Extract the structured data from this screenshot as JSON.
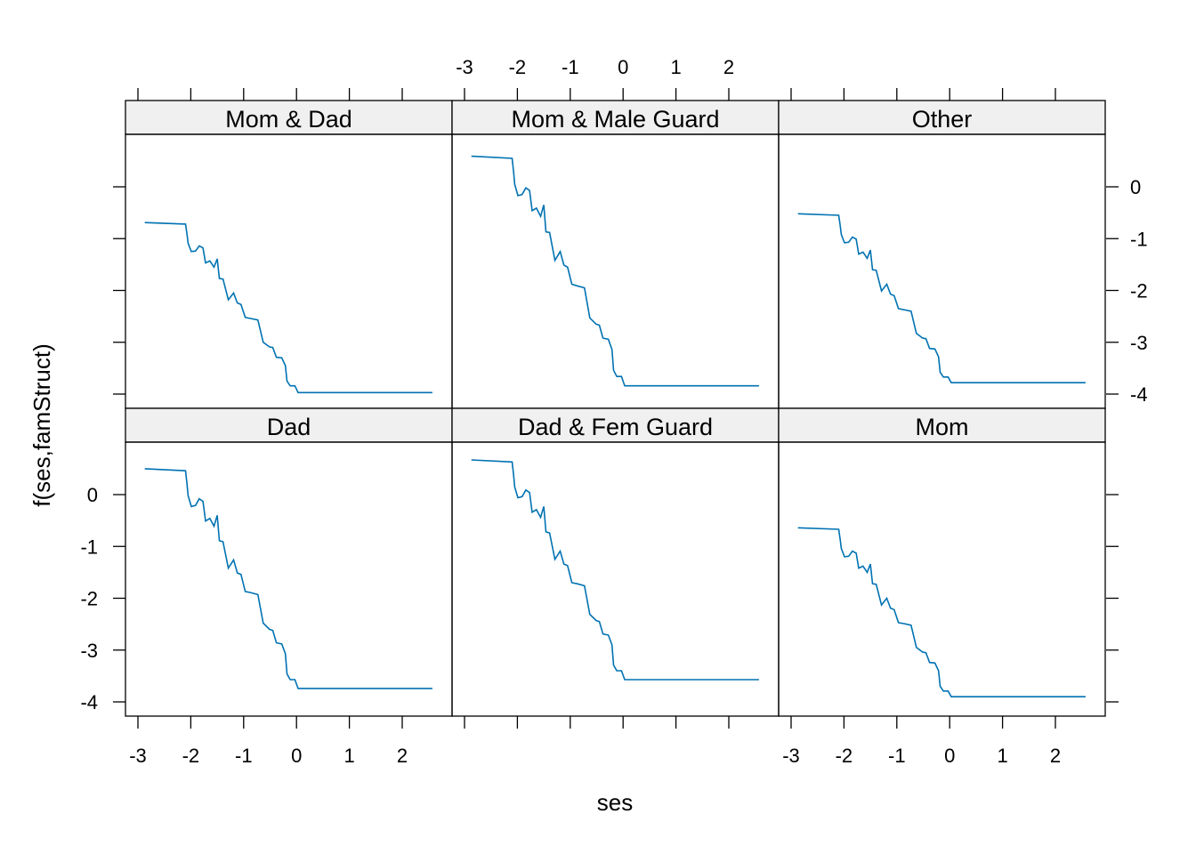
{
  "chart_data": {
    "type": "line",
    "layout": "lattice 3 columns x 2 rows",
    "xlabel": "ses",
    "ylabel": "f(ses,famStruct)",
    "xlim": [
      -3.25,
      2.95
    ],
    "ylim": [
      -4.25,
      1.0
    ],
    "xticks": [
      -3,
      -2,
      -1,
      0,
      1,
      2
    ],
    "xtick_labels": [
      "-3",
      "-2",
      "-1",
      "0",
      "1",
      "2"
    ],
    "yticks": [
      0,
      -1,
      -2,
      -3,
      -4
    ],
    "ytick_labels": [
      "0",
      "-1",
      "-2",
      "-3",
      "-4"
    ],
    "line_color": "#0072B2",
    "strip_color": "#F0F0F0",
    "x": [
      -2.87,
      -2.1,
      -2.07,
      -2.05,
      -1.99,
      -1.91,
      -1.84,
      -1.77,
      -1.72,
      -1.64,
      -1.56,
      -1.5,
      -1.46,
      -1.39,
      -1.29,
      -1.19,
      -1.12,
      -1.05,
      -0.97,
      -0.87,
      -0.73,
      -0.63,
      -0.51,
      -0.45,
      -0.38,
      -0.28,
      -0.21,
      -0.18,
      -0.12,
      -0.03,
      0.03,
      2.57
    ],
    "panels": [
      {
        "name": "Mom & Dad",
        "values": [
          -0.69,
          -0.72,
          -0.92,
          -1.09,
          -1.25,
          -1.24,
          -1.14,
          -1.18,
          -1.47,
          -1.43,
          -1.55,
          -1.39,
          -1.77,
          -1.78,
          -2.18,
          -2.05,
          -2.24,
          -2.27,
          -2.52,
          -2.54,
          -2.57,
          -3.0,
          -3.09,
          -3.1,
          -3.29,
          -3.3,
          -3.45,
          -3.75,
          -3.84,
          -3.84,
          -3.97,
          -3.97
        ]
      },
      {
        "name": "Mom & Male Guard",
        "values": [
          0.59,
          0.55,
          0.28,
          0.05,
          -0.17,
          -0.15,
          -0.02,
          -0.07,
          -0.46,
          -0.41,
          -0.57,
          -0.35,
          -0.87,
          -0.88,
          -1.42,
          -1.25,
          -1.51,
          -1.55,
          -1.88,
          -1.91,
          -1.95,
          -2.53,
          -2.65,
          -2.67,
          -2.92,
          -2.94,
          -3.14,
          -3.54,
          -3.66,
          -3.66,
          -3.84,
          -3.84
        ]
      },
      {
        "name": "Other",
        "values": [
          -0.52,
          -0.55,
          -0.75,
          -0.92,
          -1.08,
          -1.07,
          -0.97,
          -1.01,
          -1.3,
          -1.26,
          -1.38,
          -1.22,
          -1.6,
          -1.61,
          -2.01,
          -1.88,
          -2.07,
          -2.1,
          -2.35,
          -2.37,
          -2.4,
          -2.83,
          -2.92,
          -2.93,
          -3.12,
          -3.13,
          -3.28,
          -3.58,
          -3.67,
          -3.67,
          -3.78,
          -3.78
        ]
      },
      {
        "name": "Dad",
        "values": [
          0.5,
          0.46,
          0.2,
          -0.02,
          -0.23,
          -0.21,
          -0.08,
          -0.13,
          -0.51,
          -0.46,
          -0.61,
          -0.4,
          -0.89,
          -0.91,
          -1.42,
          -1.26,
          -1.51,
          -1.54,
          -1.87,
          -1.89,
          -1.93,
          -2.48,
          -2.6,
          -2.62,
          -2.86,
          -2.88,
          -3.07,
          -3.46,
          -3.57,
          -3.57,
          -3.74,
          -3.74
        ]
      },
      {
        "name": "Dad & Fem Guard",
        "values": [
          0.67,
          0.63,
          0.37,
          0.15,
          -0.06,
          -0.04,
          0.09,
          0.04,
          -0.34,
          -0.29,
          -0.44,
          -0.23,
          -0.72,
          -0.74,
          -1.25,
          -1.09,
          -1.34,
          -1.37,
          -1.7,
          -1.72,
          -1.76,
          -2.31,
          -2.43,
          -2.45,
          -2.69,
          -2.71,
          -2.9,
          -3.29,
          -3.4,
          -3.4,
          -3.57,
          -3.57
        ]
      },
      {
        "name": "Mom",
        "values": [
          -0.64,
          -0.67,
          -0.87,
          -1.04,
          -1.2,
          -1.19,
          -1.09,
          -1.13,
          -1.42,
          -1.38,
          -1.5,
          -1.34,
          -1.72,
          -1.73,
          -2.13,
          -2.0,
          -2.19,
          -2.22,
          -2.47,
          -2.49,
          -2.52,
          -2.95,
          -3.04,
          -3.05,
          -3.24,
          -3.25,
          -3.4,
          -3.7,
          -3.79,
          -3.79,
          -3.9,
          -3.9
        ]
      }
    ]
  }
}
